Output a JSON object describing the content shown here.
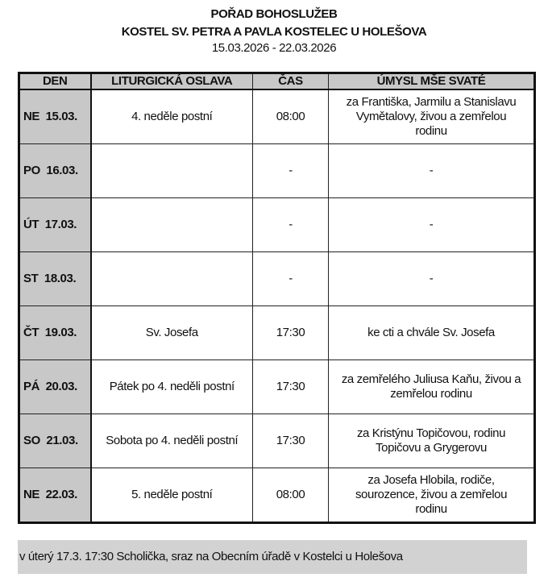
{
  "header": {
    "title": "POŘAD BOHOSLUŽEB",
    "church": "KOSTEL SV. PETRA A PAVLA KOSTELEC U HOLEŠOVA",
    "date_range": "15.03.2026 - 22.03.2026"
  },
  "table": {
    "columns": [
      "DEN",
      "LITURGICKÁ OSLAVA",
      "ČAS",
      "ÚMYSL MŠE SVATÉ"
    ],
    "rows": [
      {
        "day": "NE  15.03.",
        "celebration": "4. neděle postní",
        "time": "08:00",
        "intention": "za Františka, Jarmilu a Stanislavu\nVymětalovy, živou a zemřelou\nrodinu"
      },
      {
        "day": "PO  16.03.",
        "celebration": "",
        "time": "-",
        "intention": "-"
      },
      {
        "day": "ÚT  17.03.",
        "celebration": "",
        "time": "-",
        "intention": "-"
      },
      {
        "day": "ST  18.03.",
        "celebration": "",
        "time": "-",
        "intention": "-"
      },
      {
        "day": "ČT  19.03.",
        "celebration": "Sv. Josefa",
        "time": "17:30",
        "intention": "ke cti a chvále Sv. Josefa"
      },
      {
        "day": "PÁ  20.03.",
        "celebration": "Pátek po 4. neděli postní",
        "time": "17:30",
        "intention": "za zemřelého Juliusa Kaňu, živou a\nzemřelou rodinu"
      },
      {
        "day": "SO  21.03.",
        "celebration": "Sobota po 4. neděli postní",
        "time": "17:30",
        "intention": "za Kristýnu Topičovou, rodinu\nTopičovu a Grygerovu"
      },
      {
        "day": "NE  22.03.",
        "celebration": "5. neděle postní",
        "time": "08:00",
        "intention": "za Josefa Hlobila, rodiče,\nsourozence, živou a zemřelou\nrodinu"
      }
    ]
  },
  "note": "v úterý 17.3. 17:30 Scholička, sraz na Obecním úřadě v Kostelci u Holešova"
}
